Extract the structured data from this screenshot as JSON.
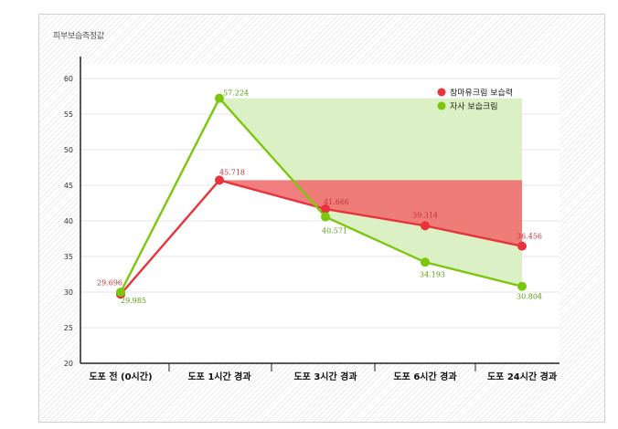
{
  "chart_data": {
    "type": "line",
    "title": "",
    "ylabel": "피부보습측정값",
    "xlabel": "",
    "categories": [
      "도포 전 (0시간)",
      "도포 1시간 경과",
      "도포 3시간 경과",
      "도포 6시간 경과",
      "도포 24시간 경과"
    ],
    "ylim": [
      20,
      60
    ],
    "yticks": [
      20,
      25,
      30,
      35,
      40,
      45,
      50,
      55,
      60
    ],
    "grid": true,
    "legend": "top-right",
    "series": [
      {
        "name": "참마유크림 보습력",
        "values": [
          29.696,
          45.718,
          41.666,
          39.314,
          36.456
        ],
        "labels": [
          "29.696",
          "45.718",
          "41.666",
          "39.314",
          "36.456"
        ],
        "color": "#e8323c",
        "fill": "#ef7070"
      },
      {
        "name": "자사 보습크림",
        "values": [
          29.985,
          57.224,
          40.571,
          34.193,
          30.804
        ],
        "labels": [
          "29.985",
          "57.224",
          "40.571",
          "34.193",
          "30.804"
        ],
        "color": "#7ac70c",
        "fill": "#d5eebb"
      }
    ]
  }
}
